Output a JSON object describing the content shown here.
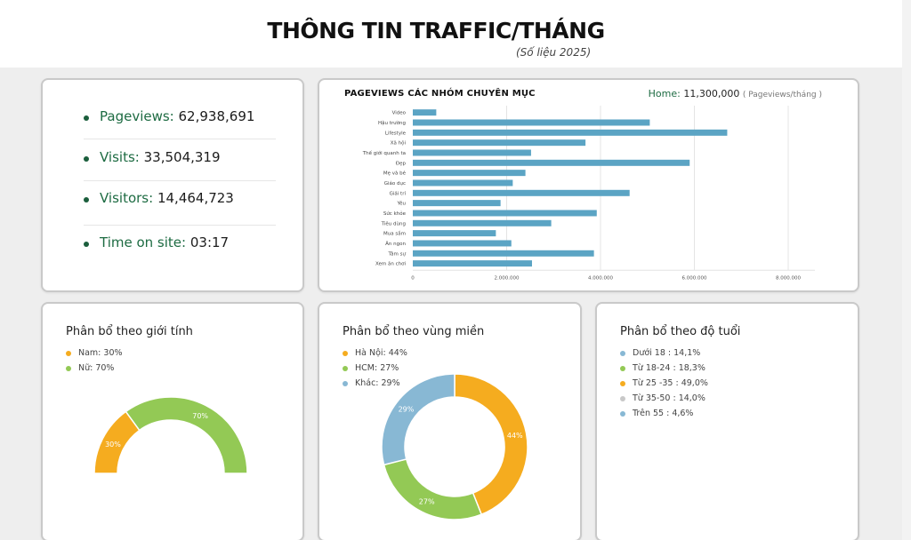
{
  "header": {
    "title": "THÔNG TIN TRAFFIC/THÁNG",
    "subtitle": "(Số liệu 2025)"
  },
  "kpis": [
    {
      "label": "Pageviews:",
      "value": "62,938,691"
    },
    {
      "label": "Visits:",
      "value": "33,504,319"
    },
    {
      "label": "Visitors:",
      "value": "14,464,723"
    },
    {
      "label": "Time on site:",
      "value": "03:17"
    }
  ],
  "bar_card": {
    "home_label": "Home:",
    "home_value": "11,300,000",
    "home_unit": "( Pageviews/tháng )"
  },
  "colors": {
    "bar": "#5ba4c4",
    "orange": "#f5ac1f",
    "green": "#93c955",
    "blue": "#88b8d4",
    "gray": "#c8c8c8"
  },
  "chart_data": [
    {
      "type": "bar",
      "orientation": "horizontal",
      "title": "PAGEVIEWS CÁC NHÓM CHUYÊN MỤC",
      "categories": [
        "Video",
        "Hậu trường",
        "Lifestyle",
        "Xã hội",
        "Thế giới quanh ta",
        "Đẹp",
        "Mẹ và bé",
        "Giáo dục",
        "Giải trí",
        "Yêu",
        "Sức khỏe",
        "Tiêu dùng",
        "Mua sắm",
        "Ăn ngon",
        "Tâm sự",
        "Xem ăn chơi"
      ],
      "values": [
        500000,
        5050000,
        6700000,
        3680000,
        2520000,
        5900000,
        2400000,
        2130000,
        4620000,
        1870000,
        3920000,
        2950000,
        1770000,
        2100000,
        3860000,
        2540000
      ],
      "ticks": [
        "0",
        "2.000.000",
        "4.000.000",
        "6.000.000",
        "8.000.000"
      ],
      "xlim": [
        0,
        8000000
      ],
      "grid": true
    },
    {
      "type": "pie",
      "style": "half-donut",
      "title": "Phân bổ theo giới tính",
      "slices": [
        {
          "name": "Nam",
          "legend": "Nam: 30%",
          "value": 30,
          "label": "30%",
          "color": "#f5ac1f"
        },
        {
          "name": "Nữ",
          "legend": "Nữ: 70%",
          "value": 70,
          "label": "70%",
          "color": "#93c955"
        }
      ]
    },
    {
      "type": "pie",
      "style": "donut",
      "title": "Phân bổ theo vùng miền",
      "slices": [
        {
          "name": "Hà Nội",
          "legend": "Hà Nội: 44%",
          "value": 44,
          "label": "44%",
          "color": "#f5ac1f"
        },
        {
          "name": "HCM",
          "legend": "HCM: 27%",
          "value": 27,
          "label": "27%",
          "color": "#93c955"
        },
        {
          "name": "Khác",
          "legend": "Khác: 29%",
          "value": 29,
          "label": "29%",
          "color": "#88b8d4"
        }
      ]
    },
    {
      "type": "pie",
      "title": "Phân bổ theo độ tuổi",
      "slices": [
        {
          "name": "Dưới 18",
          "legend": "Dưới 18 : 14,1%",
          "value": 14.1,
          "color": "#88b8d4"
        },
        {
          "name": "Từ 18-24",
          "legend": "Từ 18-24 : 18,3%",
          "value": 18.3,
          "color": "#93c955"
        },
        {
          "name": "Từ 25 -35",
          "legend": "Từ 25 -35 : 49,0%",
          "value": 49.0,
          "color": "#f5ac1f"
        },
        {
          "name": "Từ 35-50",
          "legend": "Từ 35-50 : 14,0%",
          "value": 14.0,
          "color": "#c8c8c8"
        },
        {
          "name": "Trên 55",
          "legend": "Trên 55 : 4,6%",
          "value": 4.6,
          "color": "#88b8d4"
        }
      ]
    }
  ]
}
